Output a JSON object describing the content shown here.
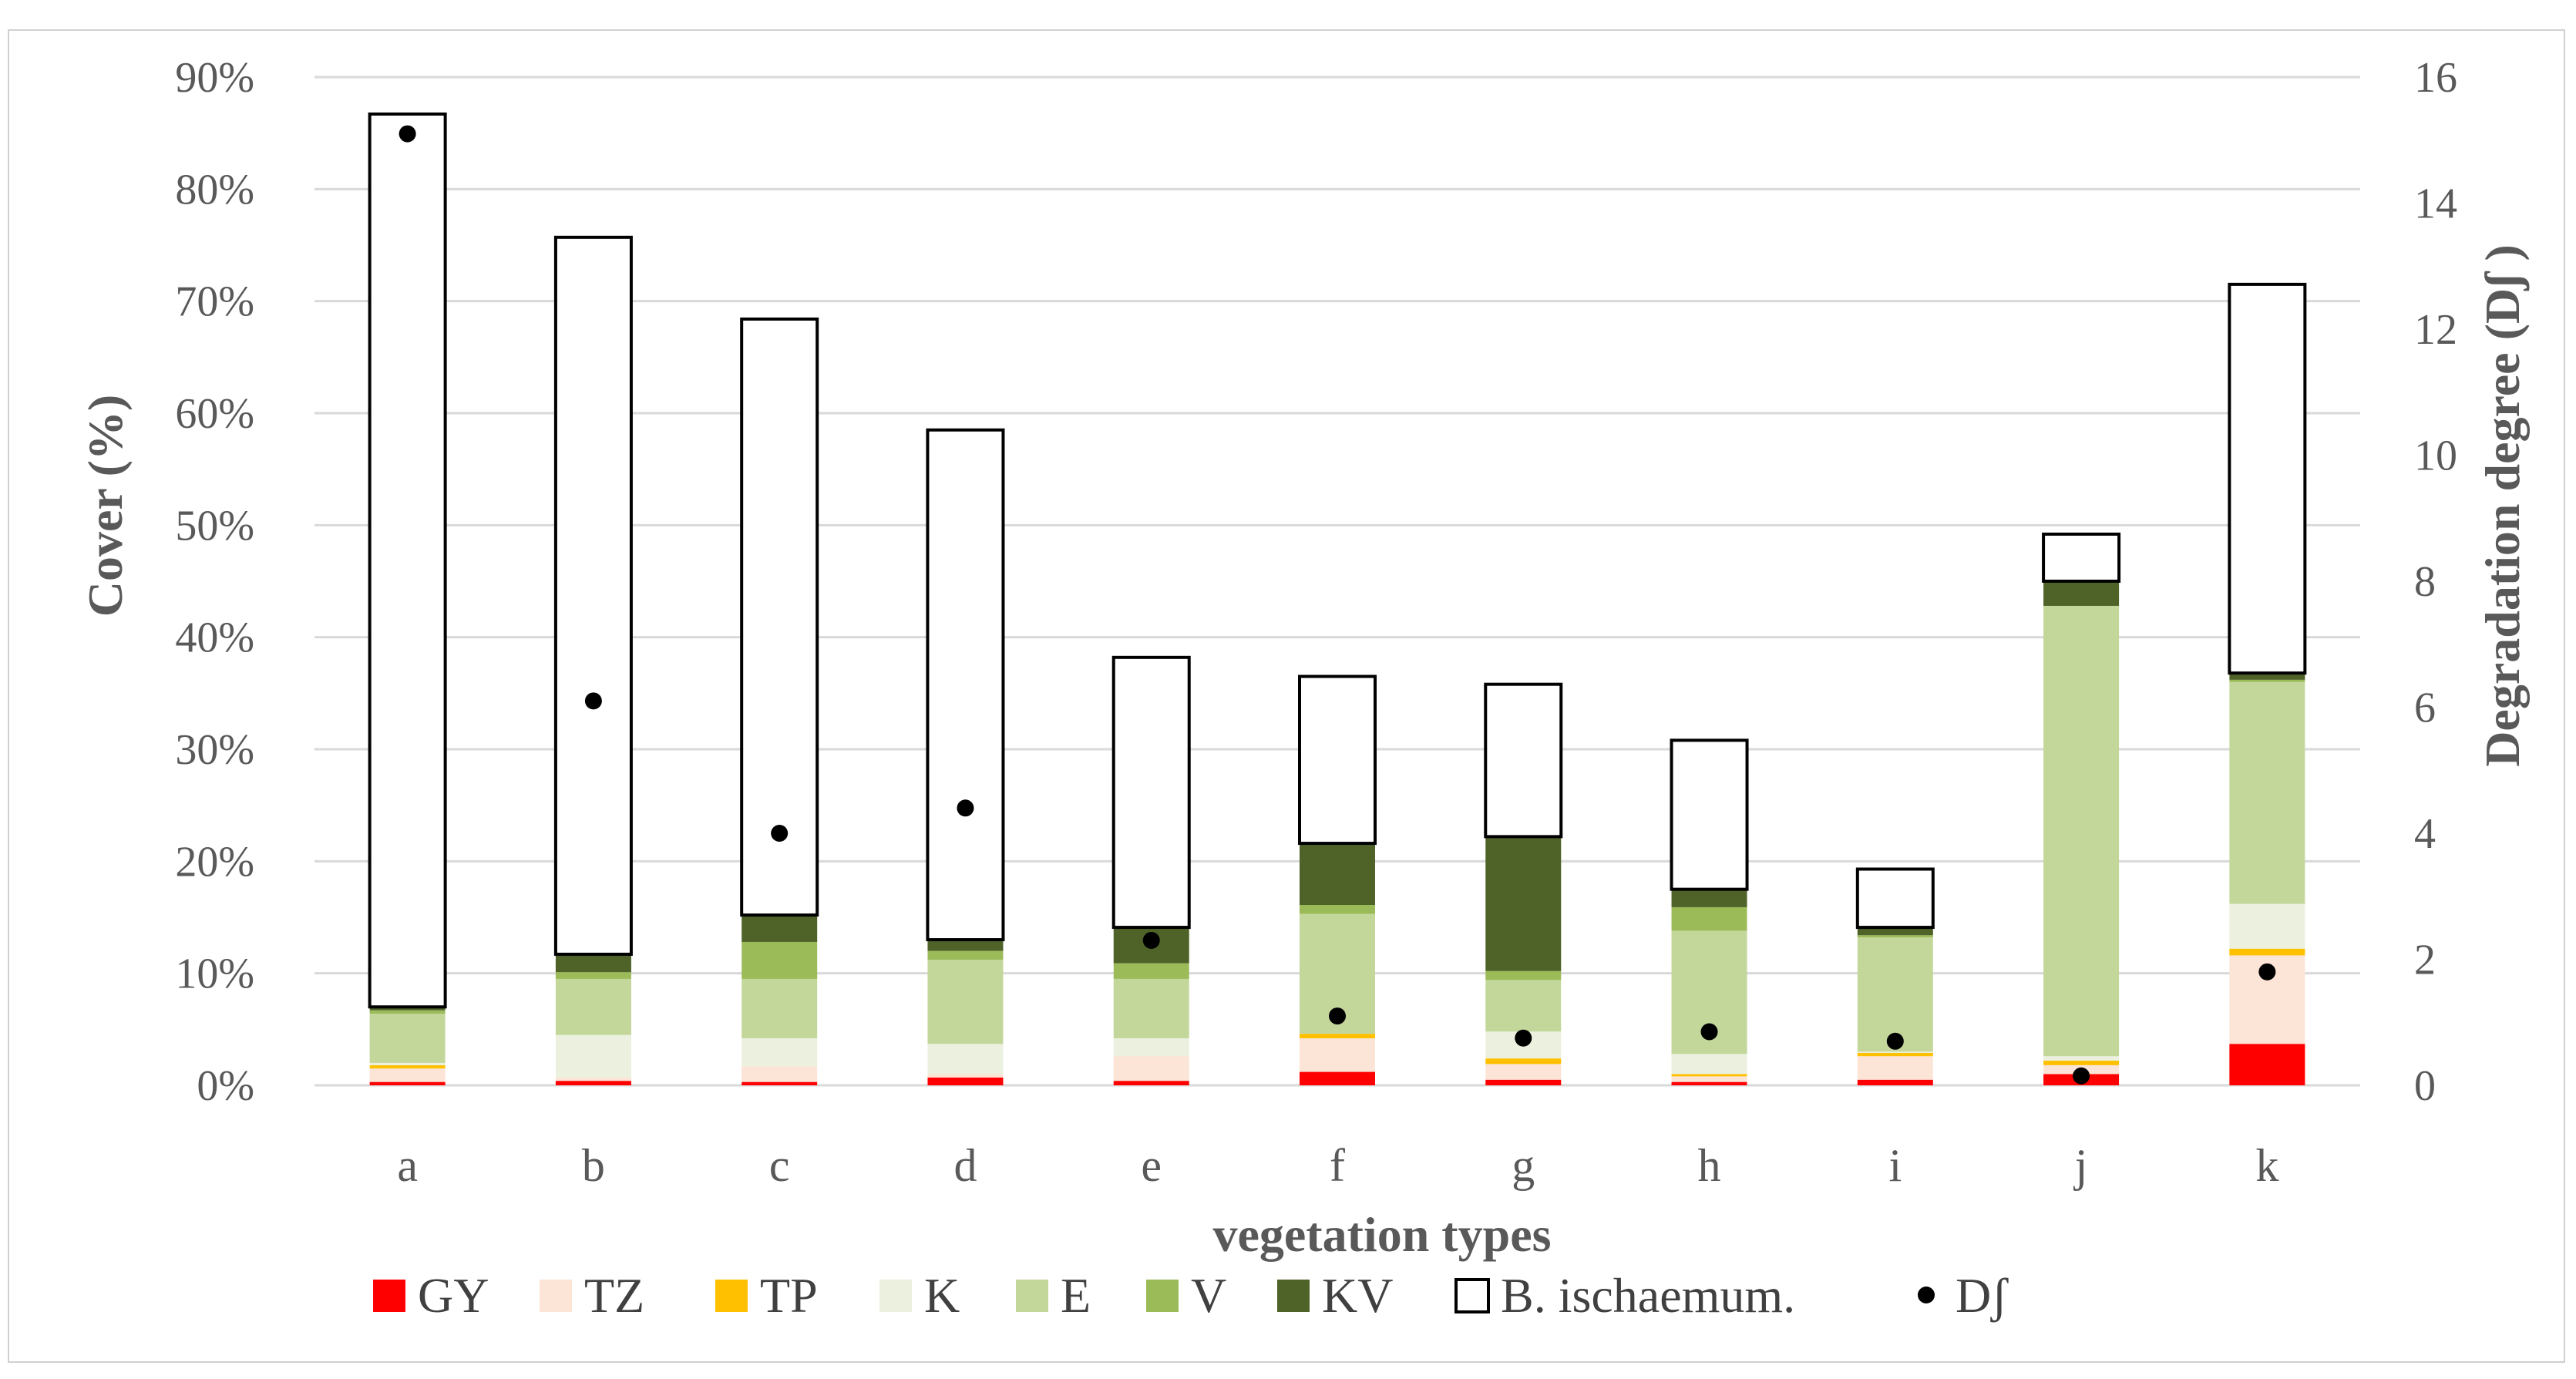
{
  "chart_data": {
    "type": "bar",
    "stacked": true,
    "xlabel": "vegetation types",
    "ylabel": "Cover (%)",
    "y2label": "Degradation degree (Dʃ )",
    "ylim": [
      0,
      90
    ],
    "y2lim": [
      0,
      16
    ],
    "yticks": [
      "0%",
      "10%",
      "20%",
      "30%",
      "40%",
      "50%",
      "60%",
      "70%",
      "80%",
      "90%"
    ],
    "y2ticks": [
      "0",
      "2",
      "4",
      "6",
      "8",
      "10",
      "12",
      "14",
      "16"
    ],
    "grid": true,
    "legend_position": "bottom",
    "categories": [
      "a",
      "b",
      "c",
      "d",
      "e",
      "f",
      "g",
      "h",
      "i",
      "j",
      "k"
    ],
    "series": [
      {
        "name": "GY",
        "color": "#ff0000",
        "values": [
          0.3,
          0.4,
          0.3,
          0.7,
          0.4,
          1.2,
          0.5,
          0.3,
          0.5,
          1.0,
          3.7
        ]
      },
      {
        "name": "TZ",
        "color": "#fce4d6",
        "values": [
          1.2,
          0.3,
          1.4,
          0.3,
          2.2,
          3.0,
          1.4,
          0.5,
          2.1,
          0.8,
          7.9
        ]
      },
      {
        "name": "TP",
        "color": "#ffc000",
        "values": [
          0.3,
          0.0,
          0.0,
          0.0,
          0.0,
          0.4,
          0.5,
          0.2,
          0.3,
          0.4,
          0.6
        ]
      },
      {
        "name": "K",
        "color": "#ebf1de",
        "values": [
          0.2,
          3.8,
          2.5,
          2.7,
          1.6,
          0.0,
          2.4,
          1.8,
          0.1,
          0.4,
          4.0
        ]
      },
      {
        "name": "E",
        "color": "#c4d79b",
        "values": [
          4.4,
          5.0,
          5.3,
          7.5,
          5.3,
          10.7,
          4.6,
          11.0,
          10.2,
          40.2,
          19.8
        ]
      },
      {
        "name": "V",
        "color": "#9bbb59",
        "values": [
          0.3,
          0.6,
          3.3,
          0.8,
          1.4,
          0.8,
          0.8,
          2.1,
          0.2,
          0.0,
          0.2
        ]
      },
      {
        "name": "KV",
        "color": "#4f6228",
        "values": [
          0.3,
          1.6,
          2.4,
          1.0,
          3.2,
          5.5,
          12.0,
          1.6,
          0.7,
          2.2,
          0.6
        ]
      },
      {
        "name": "B. ischaemum.",
        "color": "#ffffff",
        "values": [
          79.7,
          64.0,
          53.2,
          45.5,
          24.1,
          14.9,
          13.6,
          13.3,
          5.2,
          4.2,
          34.7
        ]
      }
    ],
    "secondary_series": {
      "name": "Dʃ",
      "axis": "right",
      "marker": "dot",
      "color": "#000000",
      "values": [
        15.1,
        6.1,
        4.0,
        4.4,
        2.3,
        1.1,
        0.75,
        0.85,
        0.7,
        0.15,
        1.8
      ]
    }
  }
}
